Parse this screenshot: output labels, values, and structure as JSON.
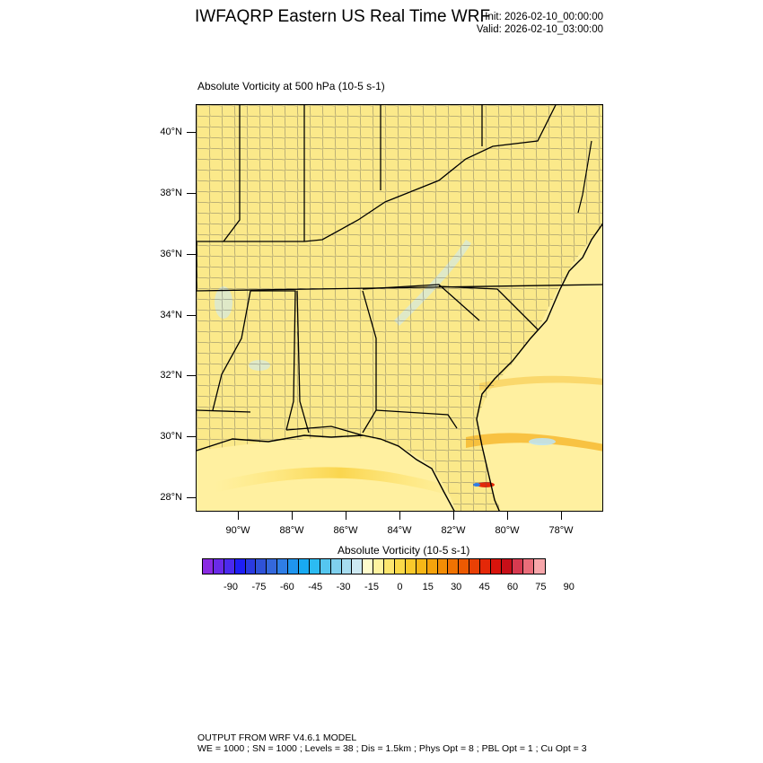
{
  "header": {
    "title": "IWFAQRP Eastern US Real Time WRF",
    "init": "Init: 2026-02-10_00:00:00",
    "valid": "Valid: 2026-02-10_03:00:00"
  },
  "map": {
    "subtitle": "Absolute Vorticity at 500 hPa   (10-5 s-1)",
    "lat_labels": [
      "40°N",
      "38°N",
      "36°N",
      "34°N",
      "32°N",
      "30°N",
      "28°N"
    ],
    "lon_labels": [
      "90°W",
      "88°W",
      "86°W",
      "84°W",
      "82°W",
      "80°W",
      "78°W"
    ],
    "field_base_color": "#fbe98a",
    "ocean_color": "#fff3a6"
  },
  "colorbar": {
    "title": "Absolute Vorticity  (10-5 s-1)",
    "labels": [
      "-90",
      "-75",
      "-60",
      "-45",
      "-30",
      "-15",
      "0",
      "15",
      "30",
      "45",
      "60",
      "75",
      "90"
    ],
    "colors": [
      "#8a2be2",
      "#6a2ae8",
      "#4b2aee",
      "#1e1ef5",
      "#2a3ae0",
      "#2f52d8",
      "#3468dc",
      "#2f7ee6",
      "#1f95ef",
      "#18aaf2",
      "#2cbbf2",
      "#55c6ef",
      "#7fd0ee",
      "#a6dcef",
      "#cde9f2",
      "#fffccc",
      "#fff3a0",
      "#fde66f",
      "#fbd948",
      "#f9c92b",
      "#f7b717",
      "#f6a30c",
      "#f38d05",
      "#f07302",
      "#ec5a02",
      "#e84005",
      "#e42808",
      "#d8140c",
      "#c70f18",
      "#d73a50",
      "#ea6d7a",
      "#f7a6aa"
    ]
  },
  "footer": {
    "line1": "OUTPUT FROM WRF V4.6.1 MODEL",
    "line2": "WE = 1000 ; SN = 1000 ; Levels = 38 ; Dis = 1.5km ; Phys Opt = 8 ; PBL Opt = 1 ; Cu Opt = 3"
  }
}
